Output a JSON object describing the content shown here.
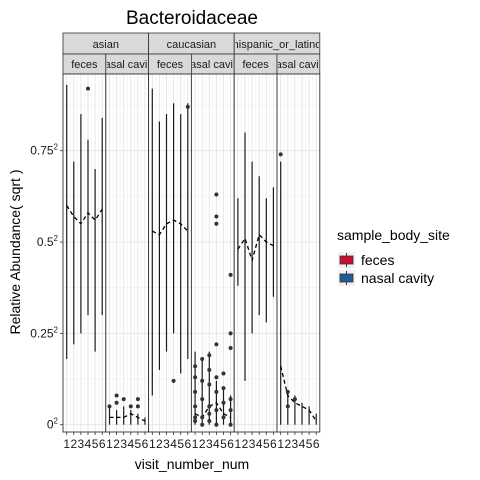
{
  "chart_data": {
    "type": "box",
    "title": "Bacteroidaceae",
    "xlabel": "visit_number_num",
    "ylabel": "Relative Abundance( sqrt )",
    "x_tick_labels": [
      "1",
      "2",
      "3",
      "4",
      "5",
      "6"
    ],
    "y_ticks": [
      {
        "value": 0,
        "base": "0",
        "exp": "2"
      },
      {
        "value": 0.25,
        "base": "0.25",
        "exp": "2"
      },
      {
        "value": 0.5,
        "base": "0.5",
        "exp": "2"
      },
      {
        "value": 0.75,
        "base": "0.75",
        "exp": "2"
      }
    ],
    "ylim": [
      -0.02,
      0.96
    ],
    "grid": true,
    "legend": {
      "title": "sample_body_site",
      "position": "right",
      "entries": [
        {
          "label": "feces",
          "color": "#C8102E"
        },
        {
          "label": "nasal cavity",
          "color": "#1F5C99"
        }
      ]
    },
    "facet_rows": [
      {
        "label": "asian",
        "panels": [
          "feces",
          "nasal cavity"
        ]
      },
      {
        "label": "caucasian",
        "panels": [
          "feces",
          "nasal cavity"
        ]
      },
      {
        "label": "hispanic_or_latino",
        "panels": [
          "feces",
          "nasal cavity"
        ]
      }
    ],
    "panels": [
      {
        "group": "asian",
        "site": "feces",
        "whiskers": [
          [
            0.18,
            0.93
          ],
          [
            0.22,
            0.72
          ],
          [
            0.25,
            0.85
          ],
          [
            0.3,
            0.78
          ],
          [
            0.2,
            0.7
          ],
          [
            0.3,
            0.84
          ]
        ],
        "means": [
          0.6,
          0.57,
          0.55,
          0.58,
          0.56,
          0.59
        ],
        "outliers": [
          [
            4,
            0.92
          ]
        ]
      },
      {
        "group": "asian",
        "site": "nasal cavity",
        "whiskers": [
          [
            0.0,
            0.05
          ],
          [
            0.0,
            0.04
          ],
          [
            0.0,
            0.05
          ],
          [
            0.0,
            0.04
          ],
          [
            0.0,
            0.03
          ],
          [
            0.0,
            0.02
          ]
        ],
        "means": [
          0.02,
          0.02,
          0.02,
          0.03,
          0.02,
          0.01
        ],
        "outliers": [
          [
            1,
            0.05
          ],
          [
            2,
            0.08
          ],
          [
            2,
            0.06
          ],
          [
            3,
            0.07
          ],
          [
            4,
            0.05
          ],
          [
            5,
            0.07
          ],
          [
            5,
            0.05
          ]
        ]
      },
      {
        "group": "caucasian",
        "site": "feces",
        "whiskers": [
          [
            0.08,
            0.92
          ],
          [
            0.15,
            0.83
          ],
          [
            0.2,
            0.85
          ],
          [
            0.25,
            0.88
          ],
          [
            0.14,
            0.85
          ],
          [
            0.18,
            0.88
          ]
        ],
        "means": [
          0.53,
          0.52,
          0.55,
          0.56,
          0.55,
          0.53
        ],
        "outliers": [
          [
            4,
            0.12
          ],
          [
            6,
            0.87
          ]
        ]
      },
      {
        "group": "caucasian",
        "site": "nasal cavity",
        "whiskers": [
          [
            0.0,
            0.2
          ],
          [
            0.0,
            0.18
          ],
          [
            0.0,
            0.2
          ],
          [
            0.0,
            0.12
          ],
          [
            0.0,
            0.1
          ],
          [
            0.0,
            0.08
          ]
        ],
        "means": [
          0.03,
          0.02,
          0.05,
          0.06,
          0.03,
          0.02
        ],
        "outliers": [
          [
            1,
            0.01
          ],
          [
            1,
            0.05
          ],
          [
            1,
            0.09
          ],
          [
            1,
            0.13
          ],
          [
            1,
            0.02
          ],
          [
            1,
            0.16
          ],
          [
            2,
            0.18
          ],
          [
            2,
            0.07
          ],
          [
            2,
            0.02
          ],
          [
            2,
            0.12
          ],
          [
            2,
            0.0
          ],
          [
            3,
            0.05
          ],
          [
            3,
            0.03
          ],
          [
            3,
            0.11
          ],
          [
            3,
            0.15
          ],
          [
            3,
            0.19
          ],
          [
            3,
            0.01
          ],
          [
            4,
            0.04
          ],
          [
            4,
            0.09
          ],
          [
            4,
            0.13
          ],
          [
            4,
            0.63
          ],
          [
            4,
            0.57
          ],
          [
            4,
            0.55
          ],
          [
            4,
            0.22
          ],
          [
            4,
            0.0
          ],
          [
            5,
            0.02
          ],
          [
            5,
            0.06
          ],
          [
            5,
            0.14
          ],
          [
            5,
            0.1
          ],
          [
            6,
            0.41
          ],
          [
            6,
            0.25
          ],
          [
            6,
            0.21
          ],
          [
            6,
            0.04
          ],
          [
            6,
            0.0
          ],
          [
            6,
            0.07
          ]
        ]
      },
      {
        "group": "hispanic_or_latino",
        "site": "feces",
        "whiskers": [
          [
            0.38,
            0.62
          ],
          [
            0.12,
            0.8
          ],
          [
            0.25,
            0.72
          ],
          [
            0.3,
            0.68
          ],
          [
            0.28,
            0.62
          ],
          [
            0.35,
            0.65
          ]
        ],
        "means": [
          0.48,
          0.51,
          0.45,
          0.52,
          0.5,
          0.49
        ],
        "outliers": []
      },
      {
        "group": "hispanic_or_latino",
        "site": "nasal cavity",
        "whiskers": [
          [
            0.0,
            0.72
          ],
          [
            0.0,
            0.09
          ],
          [
            0.0,
            0.08
          ],
          [
            0.0,
            0.06
          ],
          [
            0.0,
            0.05
          ],
          [
            0.0,
            0.03
          ]
        ],
        "means": [
          0.16,
          0.08,
          0.06,
          0.05,
          0.04,
          0.01
        ],
        "outliers": [
          [
            1,
            0.74
          ],
          [
            2,
            0.09
          ],
          [
            2,
            0.05
          ],
          [
            3,
            0.07
          ]
        ]
      }
    ]
  }
}
